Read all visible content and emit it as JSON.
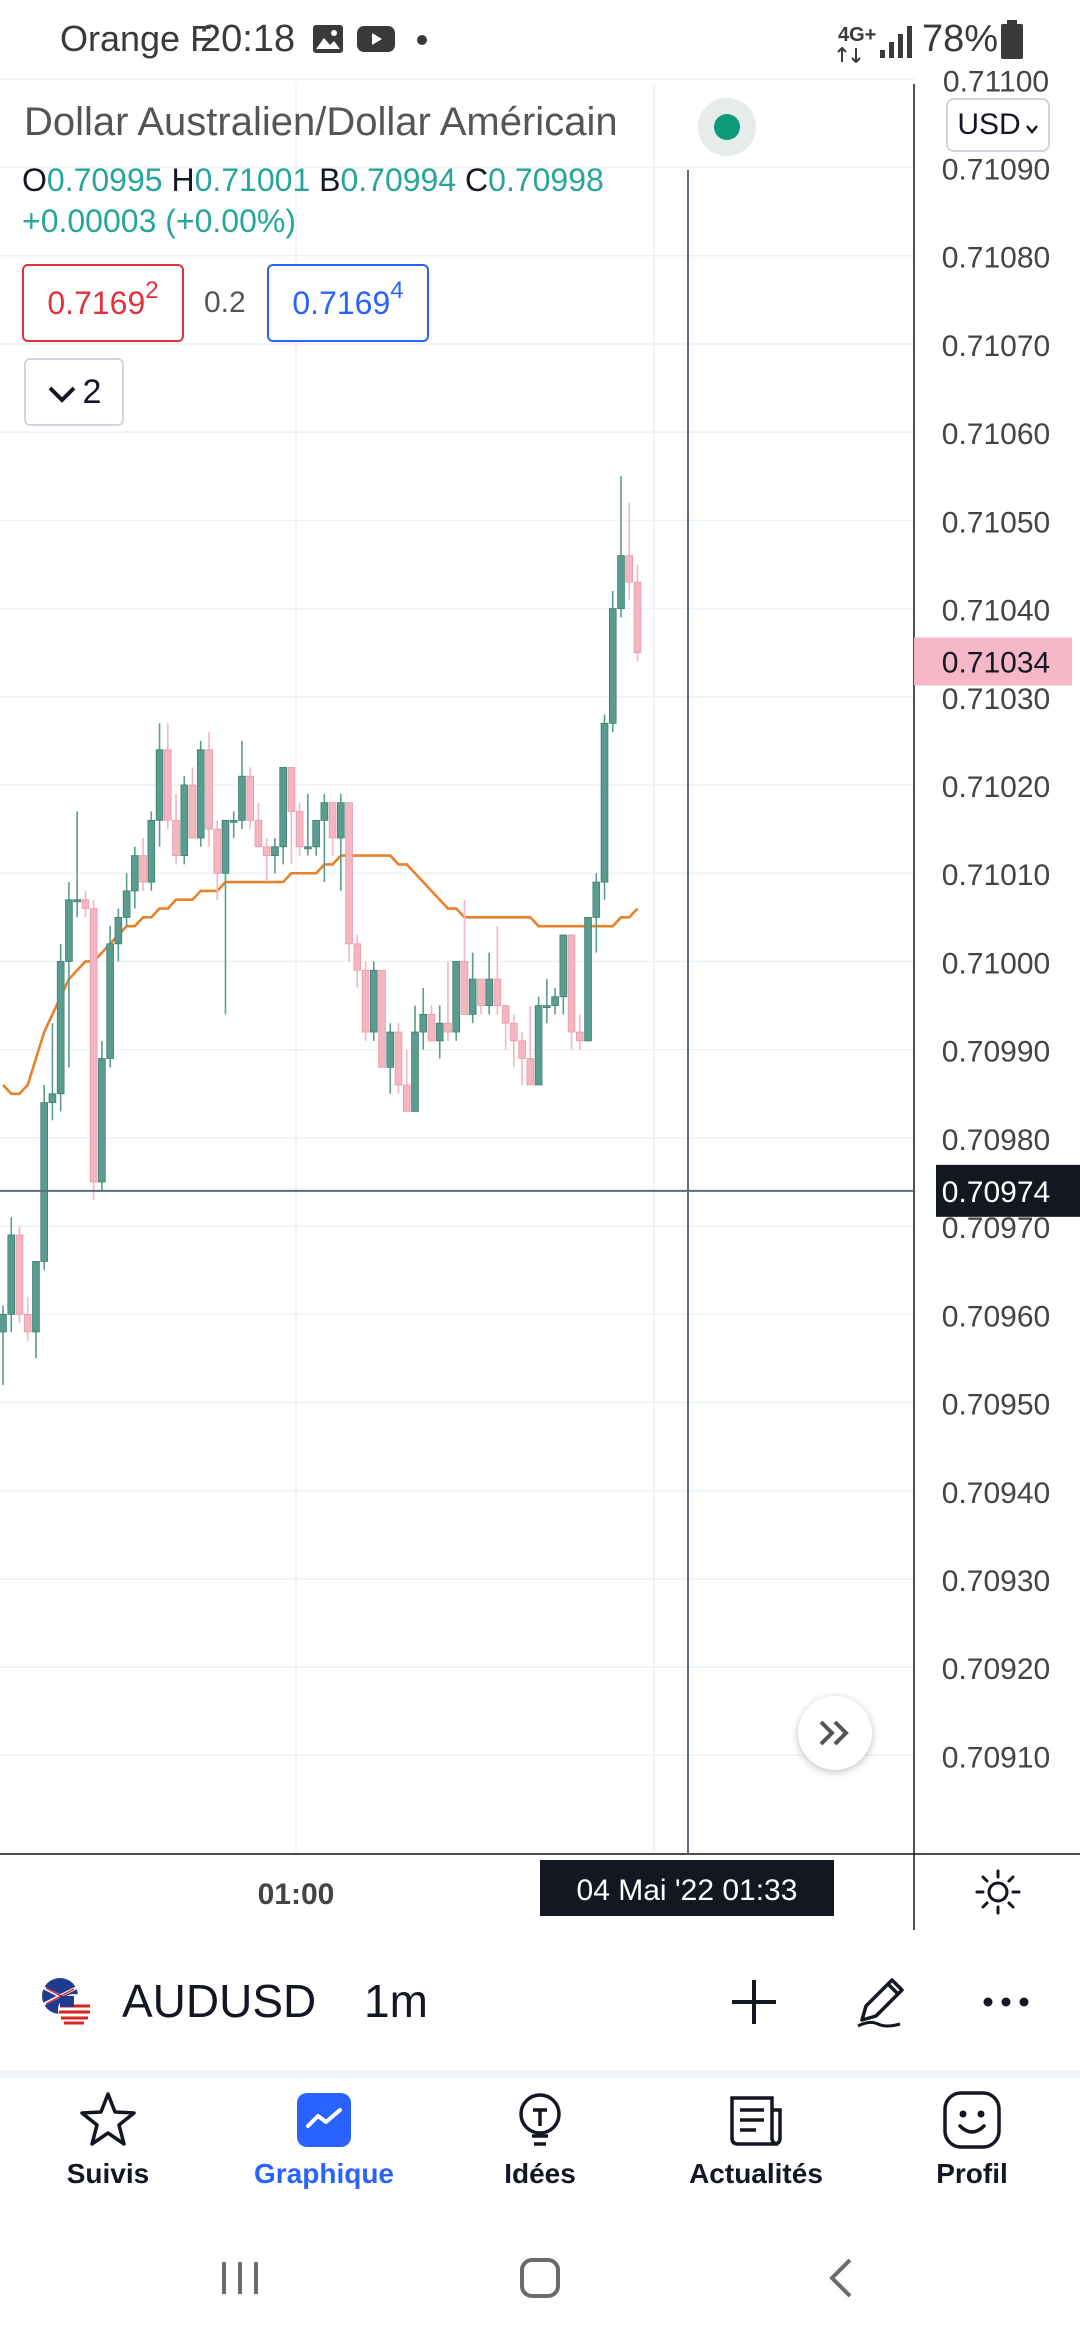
{
  "status_bar": {
    "carrier": "Orange F",
    "time": "20:18",
    "network": "4G+",
    "battery": "78%",
    "icons": [
      "image-icon",
      "youtube-icon",
      "dot-icon",
      "signal-icon",
      "battery-icon"
    ]
  },
  "header": {
    "title": "Dollar Australien/Dollar Américain",
    "ohlc": [
      {
        "label": "O",
        "value": "0.70995"
      },
      {
        "label": "H",
        "value": "0.71001"
      },
      {
        "label": "B",
        "value": "0.70994"
      },
      {
        "label": "C",
        "value": "0.70998"
      }
    ],
    "change": "+0.00003 (+0.00%)",
    "sell_price_main": "0.7169",
    "sell_price_sup": "2",
    "spread": "0.2",
    "buy_price_main": "0.7169",
    "buy_price_sup": "4",
    "collapse_count": "2",
    "currency": "USD"
  },
  "colors": {
    "up": "#5a9d8f",
    "down": "#f4b6c2",
    "ma": "#e8822a",
    "accent": "#2962ff",
    "current_price_bg": "#f6b8c8"
  },
  "chart_data": {
    "type": "candlestick",
    "symbol": "AUDUSD",
    "interval": "1m",
    "y_ticks": [
      "0.71100",
      "0.71090",
      "0.71080",
      "0.71070",
      "0.71060",
      "0.71050",
      "0.71040",
      "0.71030",
      "0.71020",
      "0.71010",
      "0.71000",
      "0.70990",
      "0.70980",
      "0.70970",
      "0.70960",
      "0.70950",
      "0.70940",
      "0.70930",
      "0.70920",
      "0.70910"
    ],
    "ylim": [
      0.70902,
      0.71104
    ],
    "x_tick": "01:00",
    "current_price": "0.71034",
    "crosshair_price": "0.70974",
    "crosshair_time": "04 Mai '22   01:33",
    "candles": [
      {
        "o": 0.70958,
        "h": 0.70961,
        "l": 0.70952,
        "c": 0.7096
      },
      {
        "o": 0.7096,
        "h": 0.70971,
        "l": 0.70958,
        "c": 0.70969
      },
      {
        "o": 0.70969,
        "h": 0.7097,
        "l": 0.70959,
        "c": 0.7096
      },
      {
        "o": 0.7096,
        "h": 0.70962,
        "l": 0.70957,
        "c": 0.70958
      },
      {
        "o": 0.70958,
        "h": 0.70966,
        "l": 0.70955,
        "c": 0.70966
      },
      {
        "o": 0.70966,
        "h": 0.70986,
        "l": 0.70965,
        "c": 0.70984
      },
      {
        "o": 0.70984,
        "h": 0.70993,
        "l": 0.70982,
        "c": 0.70985
      },
      {
        "o": 0.70985,
        "h": 0.71002,
        "l": 0.70983,
        "c": 0.71
      },
      {
        "o": 0.71,
        "h": 0.71009,
        "l": 0.70988,
        "c": 0.71007
      },
      {
        "o": 0.71007,
        "h": 0.71017,
        "l": 0.71005,
        "c": 0.71007
      },
      {
        "o": 0.71007,
        "h": 0.71008,
        "l": 0.71005,
        "c": 0.71006
      },
      {
        "o": 0.71006,
        "h": 0.71007,
        "l": 0.70973,
        "c": 0.70975
      },
      {
        "o": 0.70975,
        "h": 0.70991,
        "l": 0.70974,
        "c": 0.70989
      },
      {
        "o": 0.70989,
        "h": 0.71004,
        "l": 0.70988,
        "c": 0.71002
      },
      {
        "o": 0.71002,
        "h": 0.71006,
        "l": 0.71,
        "c": 0.71005
      },
      {
        "o": 0.71005,
        "h": 0.7101,
        "l": 0.71004,
        "c": 0.71008
      },
      {
        "o": 0.71008,
        "h": 0.71013,
        "l": 0.71006,
        "c": 0.71012
      },
      {
        "o": 0.71012,
        "h": 0.71014,
        "l": 0.71008,
        "c": 0.71009
      },
      {
        "o": 0.71009,
        "h": 0.71017,
        "l": 0.71008,
        "c": 0.71016
      },
      {
        "o": 0.71016,
        "h": 0.71027,
        "l": 0.71013,
        "c": 0.71024
      },
      {
        "o": 0.71024,
        "h": 0.71027,
        "l": 0.71015,
        "c": 0.71016
      },
      {
        "o": 0.71016,
        "h": 0.71019,
        "l": 0.71011,
        "c": 0.71012
      },
      {
        "o": 0.71012,
        "h": 0.71021,
        "l": 0.71011,
        "c": 0.7102
      },
      {
        "o": 0.7102,
        "h": 0.71022,
        "l": 0.71014,
        "c": 0.71014
      },
      {
        "o": 0.71014,
        "h": 0.71025,
        "l": 0.71013,
        "c": 0.71024
      },
      {
        "o": 0.71024,
        "h": 0.71026,
        "l": 0.71013,
        "c": 0.71015
      },
      {
        "o": 0.71015,
        "h": 0.71016,
        "l": 0.71007,
        "c": 0.7101
      },
      {
        "o": 0.7101,
        "h": 0.71016,
        "l": 0.70994,
        "c": 0.71016
      },
      {
        "o": 0.71016,
        "h": 0.71017,
        "l": 0.71014,
        "c": 0.71016
      },
      {
        "o": 0.71016,
        "h": 0.71025,
        "l": 0.71015,
        "c": 0.71021
      },
      {
        "o": 0.71021,
        "h": 0.71022,
        "l": 0.71015,
        "c": 0.71016
      },
      {
        "o": 0.71016,
        "h": 0.71018,
        "l": 0.71013,
        "c": 0.71013
      },
      {
        "o": 0.71013,
        "h": 0.71014,
        "l": 0.71009,
        "c": 0.71012
      },
      {
        "o": 0.71012,
        "h": 0.71014,
        "l": 0.7101,
        "c": 0.71013
      },
      {
        "o": 0.71013,
        "h": 0.71022,
        "l": 0.71011,
        "c": 0.71022
      },
      {
        "o": 0.71022,
        "h": 0.71022,
        "l": 0.71011,
        "c": 0.71017
      },
      {
        "o": 0.71017,
        "h": 0.71018,
        "l": 0.71012,
        "c": 0.71013
      },
      {
        "o": 0.71013,
        "h": 0.71019,
        "l": 0.71012,
        "c": 0.71013
      },
      {
        "o": 0.71013,
        "h": 0.71016,
        "l": 0.71012,
        "c": 0.71016
      },
      {
        "o": 0.71016,
        "h": 0.71019,
        "l": 0.71009,
        "c": 0.71018
      },
      {
        "o": 0.71018,
        "h": 0.71018,
        "l": 0.71012,
        "c": 0.71014
      },
      {
        "o": 0.71014,
        "h": 0.71019,
        "l": 0.71008,
        "c": 0.71018
      },
      {
        "o": 0.71018,
        "h": 0.71018,
        "l": 0.71,
        "c": 0.71002
      },
      {
        "o": 0.71002,
        "h": 0.71003,
        "l": 0.70997,
        "c": 0.70999
      },
      {
        "o": 0.70999,
        "h": 0.71,
        "l": 0.70991,
        "c": 0.70992
      },
      {
        "o": 0.70992,
        "h": 0.71,
        "l": 0.70991,
        "c": 0.70999
      },
      {
        "o": 0.70999,
        "h": 0.70999,
        "l": 0.70988,
        "c": 0.70988
      },
      {
        "o": 0.70988,
        "h": 0.70993,
        "l": 0.70985,
        "c": 0.70992
      },
      {
        "o": 0.70992,
        "h": 0.70993,
        "l": 0.70985,
        "c": 0.70986
      },
      {
        "o": 0.70986,
        "h": 0.7099,
        "l": 0.70983,
        "c": 0.70983
      },
      {
        "o": 0.70983,
        "h": 0.70995,
        "l": 0.70983,
        "c": 0.70992
      },
      {
        "o": 0.70992,
        "h": 0.70997,
        "l": 0.7099,
        "c": 0.70994
      },
      {
        "o": 0.70994,
        "h": 0.70995,
        "l": 0.70991,
        "c": 0.70991
      },
      {
        "o": 0.70991,
        "h": 0.70995,
        "l": 0.70989,
        "c": 0.70993
      },
      {
        "o": 0.70993,
        "h": 0.71,
        "l": 0.70991,
        "c": 0.70992
      },
      {
        "o": 0.70992,
        "h": 0.71,
        "l": 0.70991,
        "c": 0.71
      },
      {
        "o": 0.71,
        "h": 0.71007,
        "l": 0.70994,
        "c": 0.70994
      },
      {
        "o": 0.70994,
        "h": 0.71001,
        "l": 0.70993,
        "c": 0.70998
      },
      {
        "o": 0.70998,
        "h": 0.70998,
        "l": 0.70994,
        "c": 0.70995
      },
      {
        "o": 0.70995,
        "h": 0.71001,
        "l": 0.70994,
        "c": 0.70998
      },
      {
        "o": 0.70998,
        "h": 0.71004,
        "l": 0.70994,
        "c": 0.70995
      },
      {
        "o": 0.70995,
        "h": 0.70995,
        "l": 0.7099,
        "c": 0.70993
      },
      {
        "o": 0.70993,
        "h": 0.70994,
        "l": 0.70988,
        "c": 0.70991
      },
      {
        "o": 0.70991,
        "h": 0.70992,
        "l": 0.70986,
        "c": 0.70989
      },
      {
        "o": 0.70989,
        "h": 0.70995,
        "l": 0.70986,
        "c": 0.70986
      },
      {
        "o": 0.70986,
        "h": 0.70996,
        "l": 0.70986,
        "c": 0.70995
      },
      {
        "o": 0.70995,
        "h": 0.70998,
        "l": 0.70993,
        "c": 0.70995
      },
      {
        "o": 0.70995,
        "h": 0.70997,
        "l": 0.70994,
        "c": 0.70996
      },
      {
        "o": 0.70996,
        "h": 0.71003,
        "l": 0.70994,
        "c": 0.71003
      },
      {
        "o": 0.71003,
        "h": 0.71003,
        "l": 0.7099,
        "c": 0.70992
      },
      {
        "o": 0.70992,
        "h": 0.70994,
        "l": 0.7099,
        "c": 0.70991
      },
      {
        "o": 0.70991,
        "h": 0.71005,
        "l": 0.70991,
        "c": 0.71005
      },
      {
        "o": 0.71005,
        "h": 0.7101,
        "l": 0.71001,
        "c": 0.71009
      },
      {
        "o": 0.71009,
        "h": 0.71028,
        "l": 0.71007,
        "c": 0.71027
      },
      {
        "o": 0.71027,
        "h": 0.71042,
        "l": 0.71026,
        "c": 0.7104
      },
      {
        "o": 0.7104,
        "h": 0.71055,
        "l": 0.71039,
        "c": 0.71046
      },
      {
        "o": 0.71046,
        "h": 0.71052,
        "l": 0.71041,
        "c": 0.71043
      },
      {
        "o": 0.71043,
        "h": 0.71045,
        "l": 0.71034,
        "c": 0.71035
      }
    ],
    "moving_average": [
      0.70986,
      0.70985,
      0.70985,
      0.70986,
      0.70989,
      0.70992,
      0.70994,
      0.70996,
      0.70998,
      0.70999,
      0.71,
      0.71,
      0.71001,
      0.71002,
      0.71003,
      0.71004,
      0.71004,
      0.71005,
      0.71005,
      0.71006,
      0.71006,
      0.71007,
      0.71007,
      0.71007,
      0.71008,
      0.71008,
      0.71008,
      0.71009,
      0.71009,
      0.71009,
      0.71009,
      0.71009,
      0.71009,
      0.71009,
      0.71009,
      0.7101,
      0.7101,
      0.7101,
      0.7101,
      0.71011,
      0.71011,
      0.71012,
      0.71012,
      0.71012,
      0.71012,
      0.71012,
      0.71012,
      0.71012,
      0.71011,
      0.71011,
      0.7101,
      0.71009,
      0.71008,
      0.71007,
      0.71006,
      0.71006,
      0.71005,
      0.71005,
      0.71005,
      0.71005,
      0.71005,
      0.71005,
      0.71005,
      0.71005,
      0.71005,
      0.71004,
      0.71004,
      0.71004,
      0.71004,
      0.71004,
      0.71004,
      0.71004,
      0.71004,
      0.71004,
      0.71004,
      0.71005,
      0.71005,
      0.71006
    ]
  },
  "bottom_toolbar": {
    "symbol": "AUDUSD",
    "timeframe": "1m",
    "icons": [
      "add-icon",
      "pen-icon",
      "more-icon"
    ]
  },
  "tabs": [
    {
      "label": "Suivis",
      "icon": "star-icon",
      "active": false
    },
    {
      "label": "Graphique",
      "icon": "chart-icon",
      "active": true
    },
    {
      "label": "Idées",
      "icon": "bulb-icon",
      "active": false
    },
    {
      "label": "Actualités",
      "icon": "news-icon",
      "active": false
    },
    {
      "label": "Profil",
      "icon": "smiley-icon",
      "active": false
    }
  ]
}
